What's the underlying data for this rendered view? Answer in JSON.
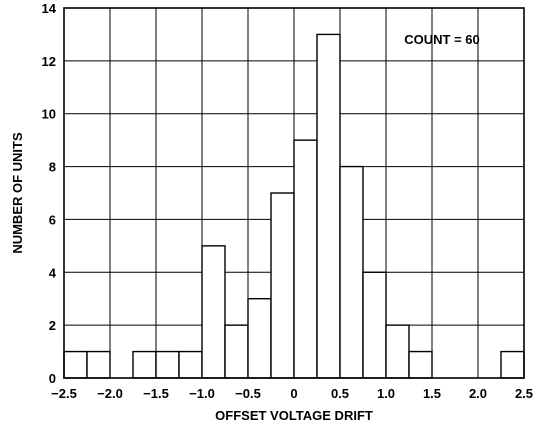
{
  "chart_data": {
    "type": "bar",
    "title": "",
    "xlabel": "OFFSET VOLTAGE DRIFT",
    "ylabel": "NUMBER OF UNITS",
    "annotation": "COUNT = 60",
    "xlim": [
      -2.5,
      2.5
    ],
    "ylim": [
      0,
      14
    ],
    "grid": true,
    "x_ticks": [
      "−2.5",
      "−2.0",
      "−1.5",
      "−1.0",
      "−0.5",
      "0",
      "0.5",
      "1.0",
      "1.5",
      "2.0",
      "2.5"
    ],
    "y_ticks": [
      "0",
      "2",
      "4",
      "6",
      "8",
      "10",
      "12",
      "14"
    ],
    "bins": [
      {
        "from": -2.5,
        "to": -2.25,
        "value": 1
      },
      {
        "from": -2.25,
        "to": -2.0,
        "value": 1
      },
      {
        "from": -2.0,
        "to": -1.75,
        "value": 0
      },
      {
        "from": -1.75,
        "to": -1.5,
        "value": 1
      },
      {
        "from": -1.5,
        "to": -1.25,
        "value": 1
      },
      {
        "from": -1.25,
        "to": -1.0,
        "value": 1
      },
      {
        "from": -1.0,
        "to": -0.75,
        "value": 5
      },
      {
        "from": -0.75,
        "to": -0.5,
        "value": 2
      },
      {
        "from": -0.5,
        "to": -0.25,
        "value": 3
      },
      {
        "from": -0.25,
        "to": 0.0,
        "value": 7
      },
      {
        "from": 0.0,
        "to": 0.25,
        "value": 9
      },
      {
        "from": 0.25,
        "to": 0.5,
        "value": 13
      },
      {
        "from": 0.5,
        "to": 0.75,
        "value": 8
      },
      {
        "from": 0.75,
        "to": 1.0,
        "value": 4
      },
      {
        "from": 1.0,
        "to": 1.25,
        "value": 2
      },
      {
        "from": 1.25,
        "to": 1.5,
        "value": 1
      },
      {
        "from": 1.5,
        "to": 1.75,
        "value": 0
      },
      {
        "from": 1.75,
        "to": 2.0,
        "value": 0
      },
      {
        "from": 2.0,
        "to": 2.25,
        "value": 0
      },
      {
        "from": 2.25,
        "to": 2.5,
        "value": 1
      }
    ]
  }
}
